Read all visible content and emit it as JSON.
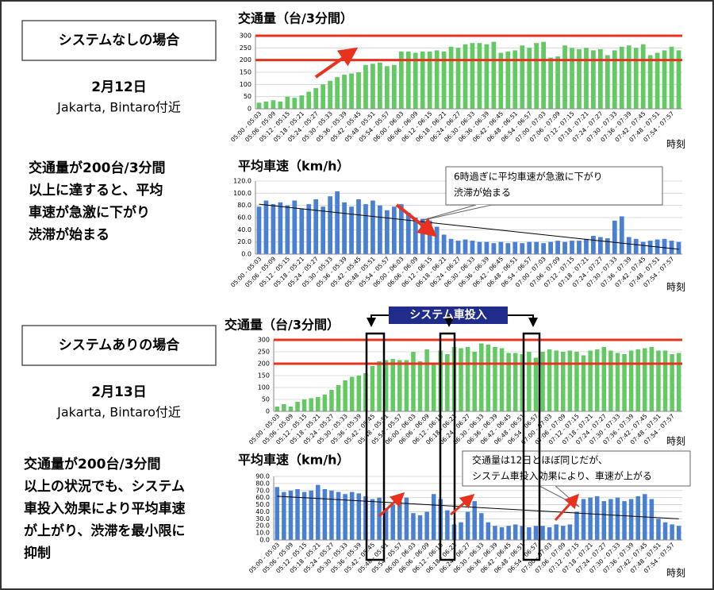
{
  "sections": [
    {
      "heading": "システムなしの場合",
      "date": "2月12日",
      "place": "Jakarta, Bintaro付近",
      "description": [
        "交通量が200台/3分間",
        "以上に達すると、平均",
        "車速が急激に下がり",
        "渋滞が始まる"
      ]
    },
    {
      "heading": "システムありの場合",
      "date": "2月13日",
      "place": "Jakarta, Bintaro付近",
      "description": [
        "交通量が200台/3分間",
        "以上の状況でも、システム",
        "車投入効果により平均車速",
        "が上がり、渋滞を最小限に",
        "抑制"
      ]
    }
  ],
  "chart_data": [
    {
      "type": "bar",
      "title": "交通量（台/3分間）",
      "x_label": "時刻",
      "color": "#63c963",
      "grid": true,
      "categories": [
        "05:00 - 05:03",
        null,
        "05:06 - 05:09",
        null,
        "05:12 - 05:15",
        null,
        "05:18 - 05:21",
        null,
        "05:24 - 05:27",
        null,
        "05:30 - 05:33",
        null,
        "05:36 - 05:39",
        null,
        "05:42 - 05:45",
        null,
        "05:48 - 05:51",
        null,
        "05:54 - 05:57",
        null,
        "06:00 - 06:03",
        null,
        "06:06 - 06:09",
        null,
        "06:12 - 06:15",
        null,
        "06:18 - 06:21",
        null,
        "06:24 - 06:27",
        null,
        "06:30 - 06:33",
        null,
        "06:36 - 06:39",
        null,
        "06:42 - 06:45",
        null,
        "06:48 - 06:51",
        null,
        "06:54 - 06:57",
        null,
        "07:00 - 07:03",
        null,
        "07:06 - 07:09",
        null,
        "07:12 - 07:15",
        null,
        "07:18 - 07:21",
        null,
        "07:24 - 07:27",
        null,
        "07:30 - 07:33",
        null,
        "07:36 - 07:39",
        null,
        "07:42 - 07:45",
        null,
        "07:48 - 07:51",
        null,
        "07:54 - 07:57",
        null
      ],
      "values": [
        25,
        30,
        35,
        30,
        50,
        45,
        55,
        70,
        85,
        100,
        115,
        130,
        140,
        145,
        150,
        180,
        185,
        190,
        175,
        180,
        235,
        235,
        230,
        235,
        235,
        240,
        235,
        255,
        250,
        265,
        270,
        270,
        265,
        275,
        230,
        235,
        240,
        260,
        250,
        270,
        275,
        210,
        215,
        260,
        250,
        245,
        250,
        240,
        245,
        220,
        240,
        255,
        260,
        250,
        265,
        220,
        230,
        240,
        255,
        240
      ],
      "ylim": [
        0,
        300
      ],
      "yticks": [
        0,
        50,
        100,
        150,
        200,
        250,
        300
      ],
      "reference_lines": [
        200,
        300
      ],
      "reference_color": "#e8321e"
    },
    {
      "type": "bar",
      "title": "平均車速（km/h）",
      "x_label": "時刻",
      "color": "#4a80d2",
      "grid": true,
      "categories": [
        "05:00 - 05:03",
        null,
        "05:06 - 05:09",
        null,
        "05:12 - 05:15",
        null,
        "05:18 - 05:21",
        null,
        "05:24 - 05:27",
        null,
        "05:30 - 05:33",
        null,
        "05:36 - 05:39",
        null,
        "05:42 - 05:45",
        null,
        "05:48 - 05:51",
        null,
        "05:54 - 05:57",
        null,
        "06:00 - 06:03",
        null,
        "06:06 - 06:09",
        null,
        "06:12 - 06:15",
        null,
        "06:18 - 06:21",
        null,
        "06:24 - 06:27",
        null,
        "06:30 - 06:33",
        null,
        "06:36 - 06:39",
        null,
        "06:42 - 06:45",
        null,
        "06:48 - 06:51",
        null,
        "06:54 - 06:57",
        null,
        "07:00 - 07:03",
        null,
        "07:06 - 07:09",
        null,
        "07:12 - 07:15",
        null,
        "07:18 - 07:21",
        null,
        "07:24 - 07:27",
        null,
        "07:30 - 07:33",
        null,
        "07:36 - 07:39",
        null,
        "07:42 - 07:45",
        null,
        "07:48 - 07:51",
        null,
        "07:54 - 07:57",
        null
      ],
      "values": [
        78,
        88,
        82,
        85,
        80,
        88,
        75,
        82,
        90,
        78,
        95,
        103,
        85,
        78,
        90,
        82,
        88,
        80,
        72,
        78,
        82,
        68,
        60,
        58,
        55,
        45,
        32,
        25,
        22,
        24,
        22,
        20,
        20,
        18,
        20,
        18,
        20,
        18,
        20,
        20,
        18,
        20,
        22,
        20,
        22,
        22,
        25,
        30,
        28,
        26,
        55,
        62,
        28,
        25,
        20,
        22,
        24,
        25,
        22,
        20
      ],
      "ylim": [
        0,
        120
      ],
      "yticks": [
        {
          "value": 0,
          "label": "0.0"
        },
        {
          "value": 20,
          "label": "20.0"
        },
        {
          "value": 40,
          "label": "40.0"
        },
        {
          "value": 60,
          "label": "60.0"
        },
        {
          "value": 80,
          "label": "80.0"
        },
        {
          "value": 100,
          "label": "100.0"
        },
        {
          "value": 120,
          "label": "120.0"
        }
      ],
      "trendline": [
        82,
        8
      ],
      "annotation": [
        "6時過ぎに平均車速が急激に下がり",
        "渋滞が始まる"
      ]
    },
    {
      "type": "bar",
      "title": "交通量（台/3分間）",
      "x_label": "時刻",
      "color": "#63c963",
      "grid": true,
      "categories": [
        "05:00 - 05:03",
        null,
        "05:06 - 05:09",
        null,
        "05:12 - 05:15",
        null,
        "05:18 - 05:21",
        null,
        "05:24 - 05:27",
        null,
        "05:30 - 05:33",
        null,
        "05:36 - 05:39",
        null,
        "05:42 - 05:45",
        null,
        "05:48 - 05:51",
        null,
        "05:54 - 05:57",
        null,
        "06:00 - 06:03",
        null,
        "06:06 - 06:09",
        null,
        "06:12 - 06:15",
        null,
        "06:18 - 06:21",
        null,
        "06:24 - 06:27",
        null,
        "06:30 - 06:33",
        null,
        "06:36 - 06:39",
        null,
        "06:42 - 06:45",
        null,
        "06:48 - 06:51",
        null,
        "06:54 - 06:57",
        null,
        "07:00 - 07:03",
        null,
        "07:06 - 07:09",
        null,
        "07:12 - 07:15",
        null,
        "07:18 - 07:21",
        null,
        "07:24 - 07:27",
        null,
        "07:30 - 07:33",
        null,
        "07:36 - 07:39",
        null,
        "07:42 - 07:45",
        null,
        "07:48 - 07:51",
        null,
        "07:54 - 07:57",
        null
      ],
      "values": [
        20,
        30,
        20,
        40,
        50,
        55,
        60,
        70,
        90,
        110,
        130,
        145,
        150,
        160,
        190,
        210,
        215,
        220,
        215,
        215,
        250,
        210,
        260,
        195,
        255,
        240,
        270,
        265,
        270,
        250,
        285,
        280,
        270,
        265,
        245,
        245,
        240,
        250,
        225,
        250,
        260,
        255,
        250,
        255,
        250,
        235,
        255,
        260,
        270,
        255,
        245,
        240,
        255,
        260,
        265,
        270,
        255,
        255,
        240,
        245
      ],
      "ylim": [
        0,
        300
      ],
      "yticks": [
        0,
        50,
        100,
        150,
        200,
        250,
        300
      ],
      "reference_lines": [
        200,
        300
      ],
      "reference_color": "#e8321e",
      "annotation": "システム車投入"
    },
    {
      "type": "bar",
      "title": "平均車速（km/h）",
      "x_label": "時刻",
      "color": "#4a80d2",
      "grid": true,
      "categories": [
        "05:00 - 05:03",
        null,
        "05:06 - 05:09",
        null,
        "05:12 - 05:15",
        null,
        "05:18 - 05:21",
        null,
        "05:24 - 05:27",
        null,
        "05:30 - 05:33",
        null,
        "05:36 - 05:39",
        null,
        "05:42 - 05:45",
        null,
        "05:48 - 05:51",
        null,
        "05:54 - 05:57",
        null,
        "06:00 - 06:03",
        null,
        "06:06 - 06:09",
        null,
        "06:12 - 06:15",
        null,
        "06:18 - 06:21",
        null,
        "06:24 - 06:27",
        null,
        "06:30 - 06:33",
        null,
        "06:36 - 06:39",
        null,
        "06:42 - 06:45",
        null,
        "06:48 - 06:51",
        null,
        "06:54 - 06:57",
        null,
        "07:00 - 07:03",
        null,
        "07:06 - 07:09",
        null,
        "07:12 - 07:15",
        null,
        "07:18 - 07:21",
        null,
        "07:24 - 07:27",
        null,
        "07:30 - 07:33",
        null,
        "07:36 - 07:39",
        null,
        "07:42 - 07:45",
        null,
        "07:48 - 07:51",
        null,
        "07:54 - 07:57",
        null
      ],
      "values": [
        75,
        68,
        70,
        72,
        68,
        70,
        78,
        72,
        70,
        68,
        65,
        68,
        66,
        62,
        58,
        60,
        45,
        50,
        55,
        60,
        38,
        35,
        40,
        65,
        58,
        42,
        22,
        25,
        40,
        55,
        38,
        25,
        20,
        18,
        20,
        22,
        20,
        18,
        20,
        20,
        18,
        22,
        20,
        22,
        40,
        58,
        60,
        62,
        55,
        58,
        60,
        55,
        58,
        62,
        65,
        58,
        30,
        25,
        22,
        20
      ],
      "ylim": [
        0,
        90
      ],
      "yticks": [
        {
          "value": 0,
          "label": "0.0"
        },
        {
          "value": 10,
          "label": "10.0"
        },
        {
          "value": 20,
          "label": "20.0"
        },
        {
          "value": 30,
          "label": "30.0"
        },
        {
          "value": 40,
          "label": "40.0"
        },
        {
          "value": 50,
          "label": "50.0"
        },
        {
          "value": 60,
          "label": "60.0"
        },
        {
          "value": 70,
          "label": "70.0"
        },
        {
          "value": 80,
          "label": "80.0"
        },
        {
          "value": 90,
          "label": "90.0"
        }
      ],
      "trendline": [
        62,
        30
      ],
      "annotation": [
        "交通量は12日とほぼ同じだが、",
        "システム車投入効果により、車速が上がる"
      ]
    }
  ]
}
